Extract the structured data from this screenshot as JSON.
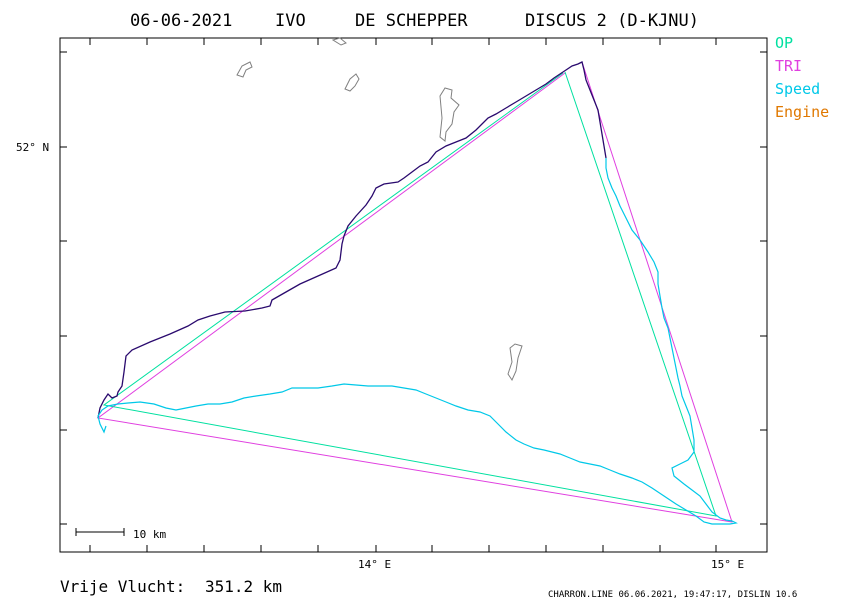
{
  "header": {
    "date": "06-06-2021",
    "pilot_first": "IVO",
    "pilot_last": "DE SCHEPPER",
    "glider": "DISCUS 2 (D-KJNU)"
  },
  "axes": {
    "lat_label": "52° N",
    "lon_label_1": "14° E",
    "lon_label_2": "15° E"
  },
  "legend": {
    "items": [
      {
        "label": "OP",
        "color": "#00e0a0"
      },
      {
        "label": "TRI",
        "color": "#e040e0"
      },
      {
        "label": "Speed",
        "color": "#00c8e8"
      },
      {
        "label": "Engine",
        "color": "#e07800"
      }
    ]
  },
  "scale": {
    "label": "10 km"
  },
  "footer": {
    "distance_label": "Vrije Vlucht:",
    "distance_value": "351.2 km",
    "credits": "CHARRON.LINE 06.06.2021, 19:47:17, DISLIN 10.6"
  },
  "colors": {
    "track_dark": "#2a0a6e",
    "track_speed": "#00c8e8",
    "op": "#00e0a0",
    "tri": "#e040e0",
    "lakes": "#808080"
  }
}
